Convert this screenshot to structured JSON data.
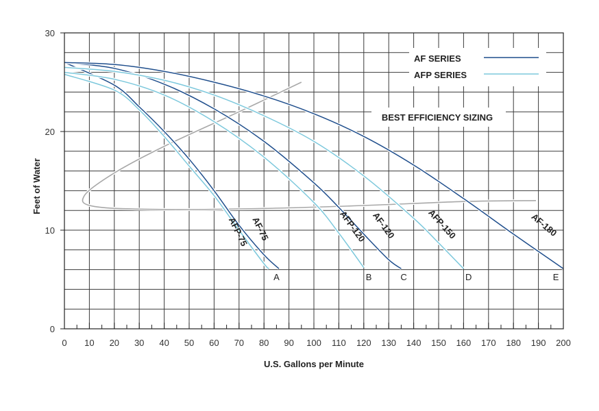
{
  "chart_data": {
    "type": "line",
    "xlabel": "U.S. Gallons per Minute",
    "ylabel": "Feet of Water",
    "xlim": [
      0,
      200
    ],
    "ylim": [
      0,
      30
    ],
    "x_ticks": [
      0,
      10,
      20,
      30,
      40,
      50,
      60,
      70,
      80,
      90,
      100,
      110,
      120,
      130,
      140,
      150,
      160,
      170,
      180,
      190,
      200
    ],
    "y_ticks": [
      0,
      10,
      20,
      30
    ],
    "grid": true,
    "legend": {
      "position": "top-right",
      "entries": [
        {
          "label": "AF SERIES",
          "color": "#1f4e8c"
        },
        {
          "label": "AFP SERIES",
          "color": "#7cc8dc"
        }
      ]
    },
    "annotation": "BEST EFFICIENCY SIZING",
    "series": [
      {
        "name": "AF-75",
        "group": "AF SERIES",
        "color": "#1f4e8c",
        "x": [
          0,
          20,
          30,
          40,
          50,
          60,
          70,
          80,
          86
        ],
        "y": [
          27,
          24.7,
          22.5,
          20,
          17.2,
          14,
          10.5,
          7.5,
          6.1
        ]
      },
      {
        "name": "AFP-75",
        "group": "AFP SERIES",
        "color": "#7cc8dc",
        "x": [
          0,
          20,
          30,
          40,
          50,
          60,
          70,
          80,
          82
        ],
        "y": [
          25.8,
          24.2,
          22.2,
          19.5,
          16.5,
          13.5,
          10,
          6.6,
          6.1
        ]
      },
      {
        "name": "AF-120",
        "group": "AF SERIES",
        "color": "#1f4e8c",
        "x": [
          0,
          20,
          40,
          60,
          80,
          100,
          110,
          120,
          130,
          135
        ],
        "y": [
          27,
          26.4,
          24.8,
          22.3,
          19,
          14.8,
          12.3,
          9.6,
          7,
          6.1
        ]
      },
      {
        "name": "AFP-120",
        "group": "AFP SERIES",
        "color": "#7cc8dc",
        "x": [
          0,
          20,
          40,
          60,
          80,
          100,
          110,
          120
        ],
        "y": [
          26,
          25.3,
          23.7,
          21,
          17.4,
          12.8,
          9.7,
          6.2
        ]
      },
      {
        "name": "AFP-150",
        "group": "AFP SERIES",
        "color": "#7cc8dc",
        "x": [
          0,
          20,
          40,
          60,
          80,
          100,
          120,
          140,
          150,
          160
        ],
        "y": [
          26.5,
          26.1,
          25.2,
          23.7,
          21.6,
          19,
          15.5,
          11.2,
          8.7,
          6.1
        ]
      },
      {
        "name": "AF-180",
        "group": "AF SERIES",
        "color": "#1f4e8c",
        "x": [
          0,
          20,
          40,
          60,
          80,
          100,
          120,
          140,
          160,
          180,
          200
        ],
        "y": [
          27,
          26.8,
          26.1,
          25,
          23.6,
          21.8,
          19.5,
          16.6,
          13.2,
          9.6,
          6.1
        ]
      }
    ],
    "efficiency_region": {
      "color": "#a8a8a8",
      "x": [
        95,
        70,
        40,
        20,
        8,
        12,
        40,
        80,
        120,
        160,
        189
      ],
      "y": [
        25,
        22,
        18.5,
        15.8,
        13.5,
        12.4,
        12.1,
        12.2,
        12.5,
        12.9,
        13
      ]
    },
    "point_labels": [
      {
        "label": "A",
        "x": 85
      },
      {
        "label": "B",
        "x": 122
      },
      {
        "label": "C",
        "x": 136
      },
      {
        "label": "D",
        "x": 162
      },
      {
        "label": "E",
        "x": 197
      }
    ]
  }
}
